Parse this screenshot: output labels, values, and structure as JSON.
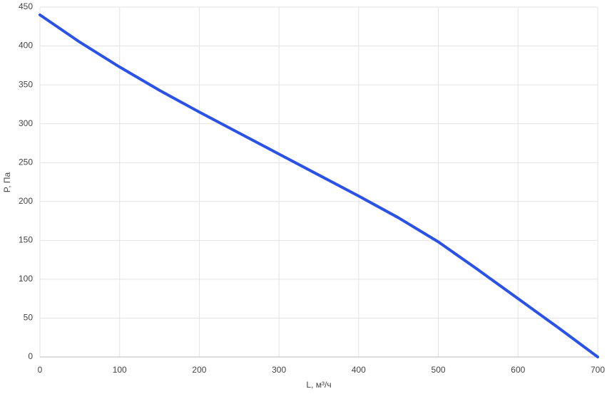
{
  "chart_data": {
    "type": "line",
    "x_label": "L, м³/ч",
    "y_label": "P, Па",
    "x": [
      0,
      50,
      100,
      150,
      200,
      250,
      300,
      350,
      400,
      450,
      500,
      550,
      600,
      650,
      700
    ],
    "series": [
      {
        "color": "#2a52e6",
        "values": [
          440,
          405,
          373,
          343,
          315,
          288,
          261,
          234,
          207,
          179,
          148,
          112,
          75,
          38,
          0
        ]
      }
    ],
    "xlim": [
      0,
      700
    ],
    "xticks": [
      0,
      100,
      200,
      300,
      400,
      500,
      600,
      700
    ],
    "ylim": [
      0,
      450
    ],
    "yticks": [
      0,
      50,
      100,
      150,
      200,
      250,
      300,
      350,
      400,
      450
    ],
    "grid": true
  }
}
